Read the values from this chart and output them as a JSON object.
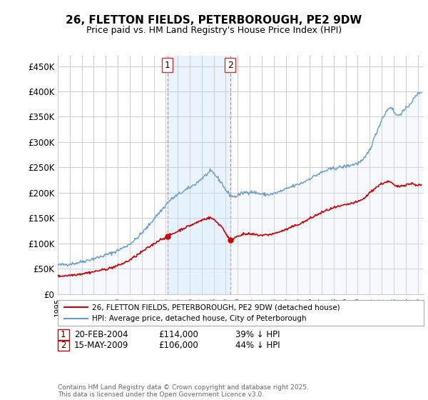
{
  "title": "26, FLETTON FIELDS, PETERBOROUGH, PE2 9DW",
  "subtitle": "Price paid vs. HM Land Registry's House Price Index (HPI)",
  "legend_line1": "26, FLETTON FIELDS, PETERBOROUGH, PE2 9DW (detached house)",
  "legend_line2": "HPI: Average price, detached house, City of Peterborough",
  "footnote": "Contains HM Land Registry data © Crown copyright and database right 2025.\nThis data is licensed under the Open Government Licence v3.0.",
  "property_color": "#cc0000",
  "hpi_color": "#6699cc",
  "hpi_fill_color": "#ddeeff",
  "background_color": "#ffffff",
  "grid_color": "#cccccc",
  "purchase1_date_num": 2004.13,
  "purchase1_price": 114000,
  "purchase2_date_num": 2009.37,
  "purchase2_price": 106000,
  "ylim": [
    0,
    470000
  ],
  "yticks": [
    0,
    50000,
    100000,
    150000,
    200000,
    250000,
    300000,
    350000,
    400000,
    450000
  ],
  "ytick_labels": [
    "£0",
    "£50K",
    "£100K",
    "£150K",
    "£200K",
    "£250K",
    "£300K",
    "£350K",
    "£400K",
    "£450K"
  ],
  "xlim_start": 1995.0,
  "xlim_end": 2025.5,
  "hpi_anchors": [
    [
      1995.0,
      57000
    ],
    [
      1995.5,
      58000
    ],
    [
      1996.0,
      59500
    ],
    [
      1996.5,
      61000
    ],
    [
      1997.0,
      64000
    ],
    [
      1997.5,
      67000
    ],
    [
      1998.0,
      70000
    ],
    [
      1998.5,
      73000
    ],
    [
      1999.0,
      77000
    ],
    [
      1999.5,
      81000
    ],
    [
      2000.0,
      86000
    ],
    [
      2000.5,
      92000
    ],
    [
      2001.0,
      99000
    ],
    [
      2001.5,
      108000
    ],
    [
      2002.0,
      120000
    ],
    [
      2002.5,
      133000
    ],
    [
      2003.0,
      148000
    ],
    [
      2003.5,
      162000
    ],
    [
      2004.0,
      175000
    ],
    [
      2004.13,
      180000
    ],
    [
      2004.5,
      188000
    ],
    [
      2005.0,
      196000
    ],
    [
      2005.5,
      203000
    ],
    [
      2006.0,
      210000
    ],
    [
      2006.5,
      218000
    ],
    [
      2007.0,
      228000
    ],
    [
      2007.5,
      238000
    ],
    [
      2007.8,
      242000
    ],
    [
      2008.0,
      238000
    ],
    [
      2008.3,
      230000
    ],
    [
      2008.7,
      218000
    ],
    [
      2009.0,
      205000
    ],
    [
      2009.37,
      195000
    ],
    [
      2009.5,
      193000
    ],
    [
      2009.8,
      192000
    ],
    [
      2010.0,
      195000
    ],
    [
      2010.5,
      200000
    ],
    [
      2011.0,
      202000
    ],
    [
      2011.5,
      200000
    ],
    [
      2012.0,
      197000
    ],
    [
      2012.5,
      196000
    ],
    [
      2013.0,
      198000
    ],
    [
      2013.5,
      202000
    ],
    [
      2014.0,
      207000
    ],
    [
      2014.5,
      212000
    ],
    [
      2015.0,
      216000
    ],
    [
      2015.5,
      221000
    ],
    [
      2016.0,
      228000
    ],
    [
      2016.5,
      234000
    ],
    [
      2017.0,
      240000
    ],
    [
      2017.5,
      245000
    ],
    [
      2018.0,
      248000
    ],
    [
      2018.5,
      250000
    ],
    [
      2019.0,
      252000
    ],
    [
      2019.5,
      255000
    ],
    [
      2020.0,
      258000
    ],
    [
      2020.5,
      265000
    ],
    [
      2021.0,
      285000
    ],
    [
      2021.5,
      315000
    ],
    [
      2022.0,
      345000
    ],
    [
      2022.5,
      365000
    ],
    [
      2022.8,
      370000
    ],
    [
      2023.0,
      360000
    ],
    [
      2023.3,
      352000
    ],
    [
      2023.5,
      355000
    ],
    [
      2024.0,
      365000
    ],
    [
      2024.5,
      380000
    ],
    [
      2025.0,
      395000
    ],
    [
      2025.3,
      400000
    ]
  ],
  "prop_anchors": [
    [
      1995.0,
      35000
    ],
    [
      1995.5,
      36000
    ],
    [
      1996.0,
      37000
    ],
    [
      1996.5,
      38500
    ],
    [
      1997.0,
      40000
    ],
    [
      1997.5,
      42000
    ],
    [
      1998.0,
      44000
    ],
    [
      1998.5,
      46500
    ],
    [
      1999.0,
      49000
    ],
    [
      1999.5,
      52000
    ],
    [
      2000.0,
      56000
    ],
    [
      2000.5,
      61000
    ],
    [
      2001.0,
      67000
    ],
    [
      2001.5,
      75000
    ],
    [
      2002.0,
      83000
    ],
    [
      2002.5,
      91000
    ],
    [
      2003.0,
      99000
    ],
    [
      2003.5,
      107000
    ],
    [
      2004.0,
      112000
    ],
    [
      2004.13,
      114000
    ],
    [
      2004.5,
      118000
    ],
    [
      2005.0,
      124000
    ],
    [
      2005.5,
      130000
    ],
    [
      2006.0,
      135000
    ],
    [
      2006.5,
      140000
    ],
    [
      2007.0,
      146000
    ],
    [
      2007.5,
      150000
    ],
    [
      2007.8,
      150000
    ],
    [
      2008.0,
      147000
    ],
    [
      2008.3,
      141000
    ],
    [
      2008.7,
      132000
    ],
    [
      2009.0,
      120000
    ],
    [
      2009.37,
      106000
    ],
    [
      2009.5,
      108000
    ],
    [
      2009.8,
      112000
    ],
    [
      2010.0,
      115000
    ],
    [
      2010.5,
      118000
    ],
    [
      2011.0,
      118000
    ],
    [
      2011.5,
      117000
    ],
    [
      2012.0,
      116000
    ],
    [
      2012.5,
      117000
    ],
    [
      2013.0,
      119000
    ],
    [
      2013.5,
      123000
    ],
    [
      2014.0,
      127000
    ],
    [
      2014.5,
      132000
    ],
    [
      2015.0,
      137000
    ],
    [
      2015.5,
      142000
    ],
    [
      2016.0,
      149000
    ],
    [
      2016.5,
      155000
    ],
    [
      2017.0,
      161000
    ],
    [
      2017.5,
      166000
    ],
    [
      2018.0,
      170000
    ],
    [
      2018.5,
      173000
    ],
    [
      2019.0,
      176000
    ],
    [
      2019.5,
      179000
    ],
    [
      2020.0,
      182000
    ],
    [
      2020.5,
      188000
    ],
    [
      2021.0,
      200000
    ],
    [
      2021.5,
      210000
    ],
    [
      2022.0,
      218000
    ],
    [
      2022.5,
      222000
    ],
    [
      2022.8,
      220000
    ],
    [
      2023.0,
      215000
    ],
    [
      2023.3,
      212000
    ],
    [
      2023.5,
      213000
    ],
    [
      2024.0,
      216000
    ],
    [
      2024.5,
      218000
    ],
    [
      2025.0,
      215000
    ],
    [
      2025.3,
      215000
    ]
  ]
}
